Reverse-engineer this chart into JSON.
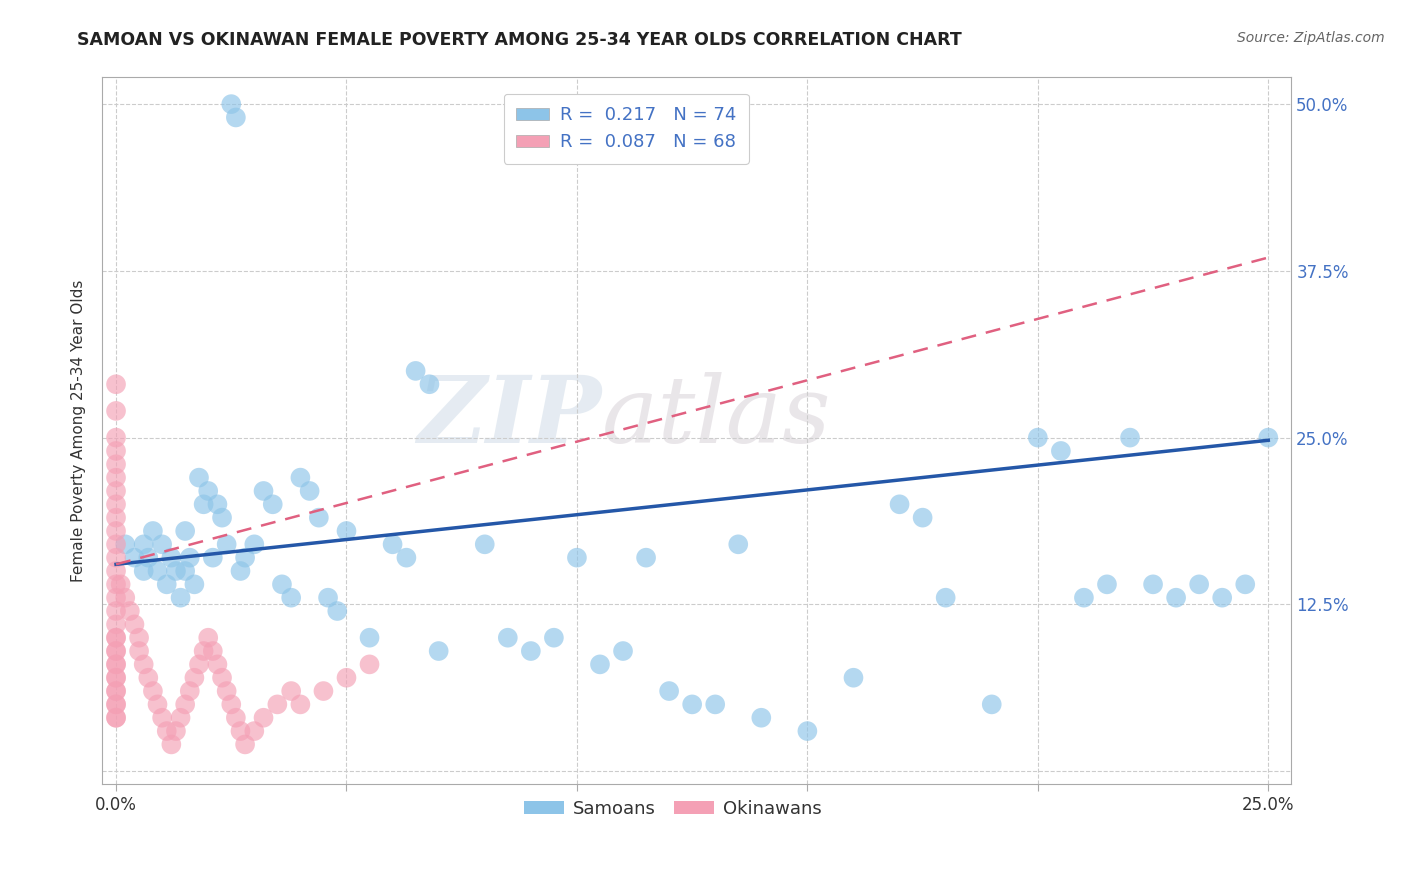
{
  "title": "SAMOAN VS OKINAWAN FEMALE POVERTY AMONG 25-34 YEAR OLDS CORRELATION CHART",
  "source": "Source: ZipAtlas.com",
  "ylabel": "Female Poverty Among 25-34 Year Olds",
  "xlim": [
    -0.003,
    0.255
  ],
  "ylim": [
    -0.01,
    0.52
  ],
  "xticks": [
    0.0,
    0.05,
    0.1,
    0.15,
    0.2,
    0.25
  ],
  "yticks": [
    0.0,
    0.125,
    0.25,
    0.375,
    0.5
  ],
  "xticklabels": [
    "0.0%",
    "",
    "",
    "",
    "",
    "25.0%"
  ],
  "yticklabels_right": [
    "",
    "12.5%",
    "25.0%",
    "37.5%",
    "50.0%"
  ],
  "samoan_R": 0.217,
  "samoan_N": 74,
  "okinawan_R": 0.087,
  "okinawan_N": 68,
  "samoan_color": "#8DC4E8",
  "okinawan_color": "#F4A0B5",
  "samoan_line_color": "#2457A8",
  "okinawan_line_color": "#E06080",
  "watermark_zip": "ZIP",
  "watermark_atlas": "atlas",
  "background_color": "#ffffff",
  "grid_color": "#cccccc",
  "legend_text_color": "#4472C4",
  "samoan_x": [
    0.002,
    0.004,
    0.006,
    0.006,
    0.007,
    0.008,
    0.009,
    0.01,
    0.011,
    0.012,
    0.013,
    0.014,
    0.015,
    0.015,
    0.016,
    0.017,
    0.018,
    0.019,
    0.02,
    0.021,
    0.022,
    0.023,
    0.024,
    0.025,
    0.026,
    0.027,
    0.028,
    0.03,
    0.032,
    0.034,
    0.036,
    0.038,
    0.04,
    0.042,
    0.044,
    0.046,
    0.048,
    0.05,
    0.055,
    0.06,
    0.063,
    0.065,
    0.068,
    0.07,
    0.08,
    0.085,
    0.09,
    0.095,
    0.1,
    0.105,
    0.11,
    0.115,
    0.12,
    0.125,
    0.13,
    0.135,
    0.14,
    0.15,
    0.16,
    0.17,
    0.175,
    0.18,
    0.19,
    0.2,
    0.205,
    0.21,
    0.215,
    0.22,
    0.225,
    0.23,
    0.235,
    0.24,
    0.245,
    0.25
  ],
  "samoan_y": [
    0.17,
    0.16,
    0.15,
    0.17,
    0.16,
    0.18,
    0.15,
    0.17,
    0.14,
    0.16,
    0.15,
    0.13,
    0.18,
    0.15,
    0.16,
    0.14,
    0.22,
    0.2,
    0.21,
    0.16,
    0.2,
    0.19,
    0.17,
    0.5,
    0.49,
    0.15,
    0.16,
    0.17,
    0.21,
    0.2,
    0.14,
    0.13,
    0.22,
    0.21,
    0.19,
    0.13,
    0.12,
    0.18,
    0.1,
    0.17,
    0.16,
    0.3,
    0.29,
    0.09,
    0.17,
    0.1,
    0.09,
    0.1,
    0.16,
    0.08,
    0.09,
    0.16,
    0.06,
    0.05,
    0.05,
    0.17,
    0.04,
    0.03,
    0.07,
    0.2,
    0.19,
    0.13,
    0.05,
    0.25,
    0.24,
    0.13,
    0.14,
    0.25,
    0.14,
    0.13,
    0.14,
    0.13,
    0.14,
    0.25
  ],
  "okinawan_x": [
    0.0,
    0.0,
    0.0,
    0.0,
    0.0,
    0.0,
    0.0,
    0.0,
    0.0,
    0.0,
    0.0,
    0.0,
    0.0,
    0.0,
    0.0,
    0.0,
    0.0,
    0.0,
    0.0,
    0.0,
    0.0,
    0.0,
    0.0,
    0.0,
    0.0,
    0.0,
    0.0,
    0.0,
    0.0,
    0.0,
    0.0,
    0.001,
    0.002,
    0.003,
    0.004,
    0.005,
    0.005,
    0.006,
    0.007,
    0.008,
    0.009,
    0.01,
    0.011,
    0.012,
    0.013,
    0.014,
    0.015,
    0.016,
    0.017,
    0.018,
    0.019,
    0.02,
    0.021,
    0.022,
    0.023,
    0.024,
    0.025,
    0.026,
    0.027,
    0.028,
    0.03,
    0.032,
    0.035,
    0.038,
    0.04,
    0.045,
    0.05,
    0.055
  ],
  "okinawan_y": [
    0.29,
    0.27,
    0.25,
    0.24,
    0.23,
    0.22,
    0.21,
    0.2,
    0.19,
    0.18,
    0.17,
    0.16,
    0.15,
    0.14,
    0.13,
    0.12,
    0.11,
    0.1,
    0.1,
    0.09,
    0.09,
    0.08,
    0.08,
    0.07,
    0.07,
    0.06,
    0.06,
    0.05,
    0.05,
    0.04,
    0.04,
    0.14,
    0.13,
    0.12,
    0.11,
    0.1,
    0.09,
    0.08,
    0.07,
    0.06,
    0.05,
    0.04,
    0.03,
    0.02,
    0.03,
    0.04,
    0.05,
    0.06,
    0.07,
    0.08,
    0.09,
    0.1,
    0.09,
    0.08,
    0.07,
    0.06,
    0.05,
    0.04,
    0.03,
    0.02,
    0.03,
    0.04,
    0.05,
    0.06,
    0.05,
    0.06,
    0.07,
    0.08
  ],
  "samoan_line_x": [
    0.0,
    0.25
  ],
  "samoan_line_y": [
    0.155,
    0.248
  ],
  "okinawan_line_x": [
    0.0,
    0.25
  ],
  "okinawan_line_y": [
    0.155,
    0.385
  ]
}
